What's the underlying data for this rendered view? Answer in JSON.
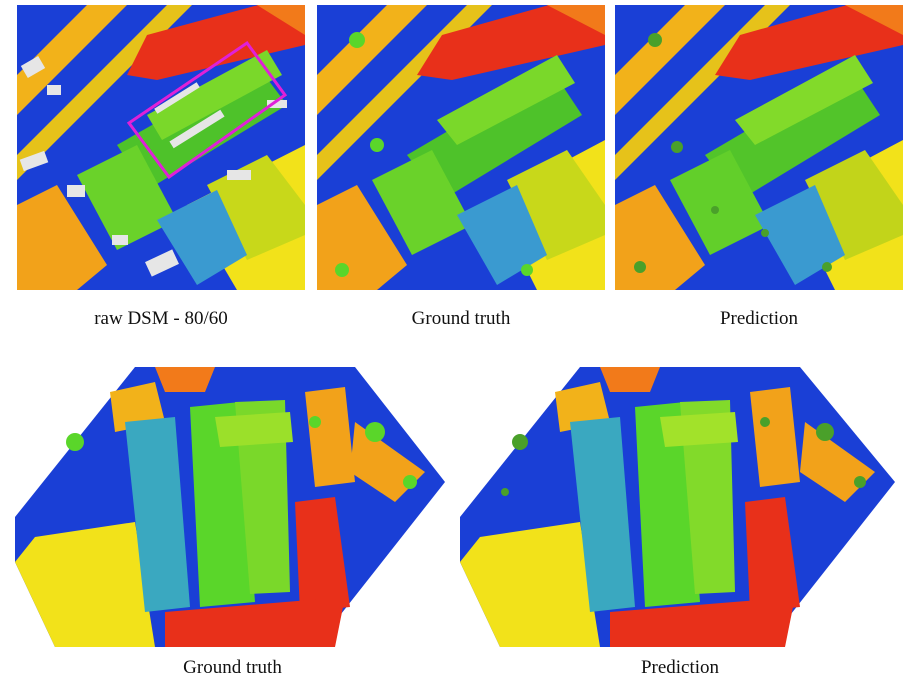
{
  "captions": {
    "raw": "raw DSM - 80/60",
    "gt_top": "Ground truth",
    "pred_top": "Prediction",
    "gt_bottom": "Ground truth",
    "pred_bottom": "Prediction"
  },
  "colors": {
    "ground": "#1a3fd6",
    "low_teal": "#2a7fb0",
    "mid_green": "#5ad62a",
    "light_green": "#9be02a",
    "yellow": "#f2e21a",
    "orange": "#f2a21a",
    "red": "#e8301a",
    "nodata": "#e6e6e6",
    "highlight_box": "#e020d8"
  }
}
